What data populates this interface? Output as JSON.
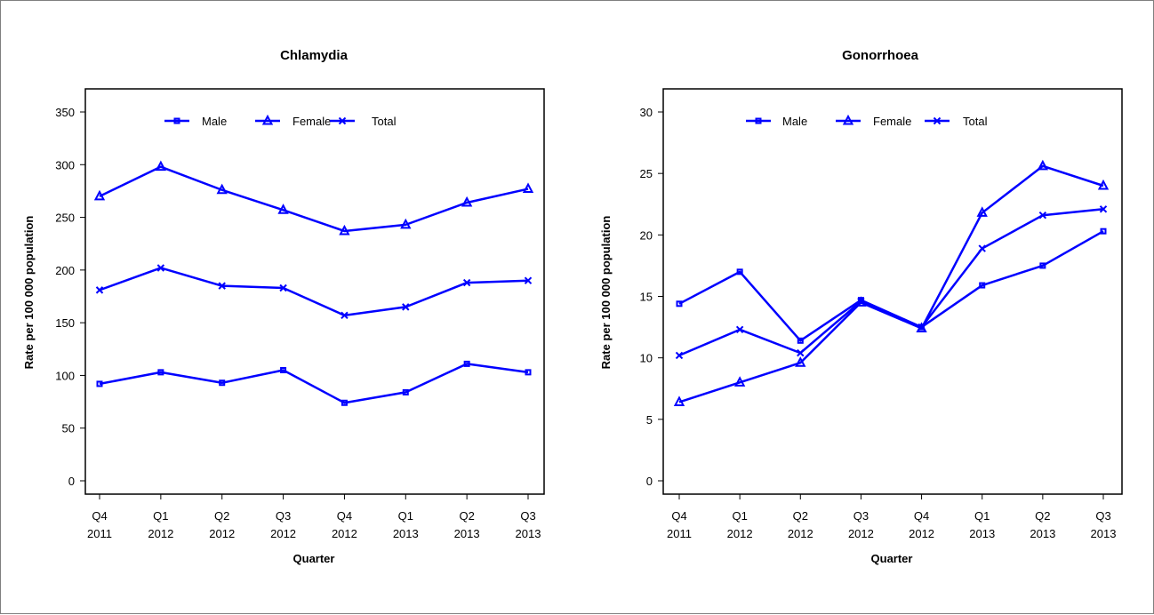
{
  "colors": {
    "series": "#0000ff",
    "axis": "#000000",
    "background": "#ffffff"
  },
  "chart_data": [
    {
      "type": "line",
      "title": "Chlamydia",
      "xlabel": "Quarter",
      "ylabel": "Rate per 100 000 population",
      "categories": [
        [
          "Q4",
          "2011"
        ],
        [
          "Q1",
          "2012"
        ],
        [
          "Q2",
          "2012"
        ],
        [
          "Q3",
          "2012"
        ],
        [
          "Q4",
          "2012"
        ],
        [
          "Q1",
          "2013"
        ],
        [
          "Q2",
          "2013"
        ],
        [
          "Q3",
          "2013"
        ]
      ],
      "ylim": [
        0,
        350
      ],
      "yticks": [
        0,
        50,
        100,
        150,
        200,
        250,
        300,
        350
      ],
      "legend_position": "top",
      "grid": false,
      "series": [
        {
          "name": "Male",
          "marker": "square",
          "values": [
            92,
            103,
            93,
            105,
            74,
            84,
            111,
            103
          ]
        },
        {
          "name": "Female",
          "marker": "triangle",
          "values": [
            270,
            298,
            276,
            257,
            237,
            243,
            264,
            277
          ]
        },
        {
          "name": "Total",
          "marker": "x",
          "values": [
            181,
            202,
            185,
            183,
            157,
            165,
            188,
            190
          ]
        }
      ]
    },
    {
      "type": "line",
      "title": "Gonorrhoea",
      "xlabel": "Quarter",
      "ylabel": "Rate per 100 000 population",
      "categories": [
        [
          "Q4",
          "2011"
        ],
        [
          "Q1",
          "2012"
        ],
        [
          "Q2",
          "2012"
        ],
        [
          "Q3",
          "2012"
        ],
        [
          "Q4",
          "2012"
        ],
        [
          "Q1",
          "2013"
        ],
        [
          "Q2",
          "2013"
        ],
        [
          "Q3",
          "2013"
        ]
      ],
      "ylim": [
        0,
        30
      ],
      "yticks": [
        0,
        5,
        10,
        15,
        20,
        25,
        30
      ],
      "legend_position": "top",
      "grid": false,
      "series": [
        {
          "name": "Male",
          "marker": "square",
          "values": [
            14.4,
            17.0,
            11.4,
            14.7,
            12.5,
            15.9,
            17.5,
            20.3
          ]
        },
        {
          "name": "Female",
          "marker": "triangle",
          "values": [
            6.4,
            8.0,
            9.6,
            14.5,
            12.4,
            21.8,
            25.6,
            24.0
          ]
        },
        {
          "name": "Total",
          "marker": "x",
          "values": [
            10.2,
            12.3,
            10.4,
            14.6,
            12.5,
            18.9,
            21.6,
            22.1
          ]
        }
      ]
    }
  ]
}
